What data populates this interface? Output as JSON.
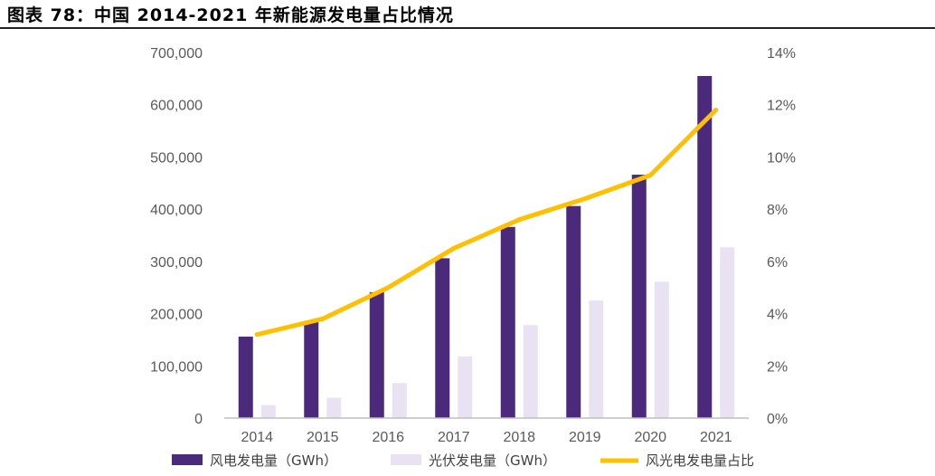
{
  "figure_title": "图表 78：中国 2014-2021 年新能源发电量占比情况",
  "chart_data": {
    "type": "bar",
    "title": "",
    "categories": [
      "2014",
      "2015",
      "2016",
      "2017",
      "2018",
      "2019",
      "2020",
      "2021"
    ],
    "series": [
      {
        "name": "风电发电量（GWh）",
        "type": "bar",
        "axis": "left",
        "color": "#4B2A7B",
        "values": [
          156000,
          186000,
          241000,
          306000,
          366000,
          406000,
          466000,
          655000
        ]
      },
      {
        "name": "光伏发电量（GWh）",
        "type": "bar",
        "axis": "left",
        "color": "#E8E2F2",
        "values": [
          25000,
          39000,
          67000,
          118000,
          178000,
          225000,
          261000,
          327000
        ]
      },
      {
        "name": "风光电发电量占比",
        "type": "line",
        "axis": "right",
        "color": "#FFC000",
        "values": [
          3.2,
          3.8,
          5.0,
          6.5,
          7.6,
          8.4,
          9.3,
          11.8
        ]
      }
    ],
    "y_left": {
      "lim": [
        0,
        700000
      ],
      "ticks": [
        "0",
        "100,000",
        "200,000",
        "300,000",
        "400,000",
        "500,000",
        "600,000",
        "700,000"
      ]
    },
    "y_right": {
      "lim": [
        0,
        14
      ],
      "ticks": [
        "0%",
        "2%",
        "4%",
        "6%",
        "8%",
        "10%",
        "12%",
        "14%"
      ]
    },
    "grid": false,
    "legend_position": "bottom"
  }
}
